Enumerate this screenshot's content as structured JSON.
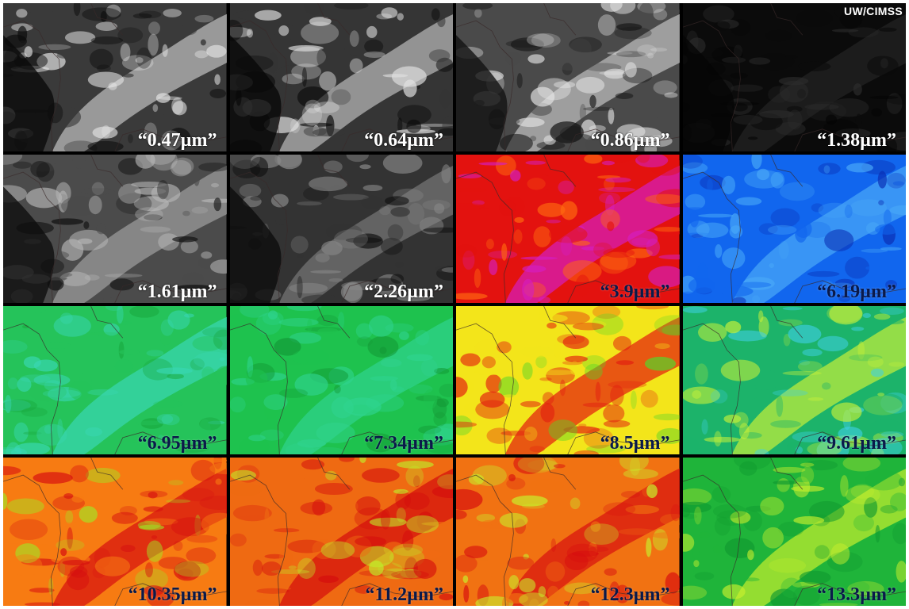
{
  "credit": "UW/CIMSS",
  "panels": [
    {
      "label": "“0.47µm”",
      "style": "gray",
      "base": "#3a3a3a",
      "hi": "#e8e8e8",
      "dark": "#0a0a0a"
    },
    {
      "label": "“0.64µm”",
      "style": "gray",
      "base": "#353535",
      "hi": "#e0e0e0",
      "dark": "#080808"
    },
    {
      "label": "“0.86µm”",
      "style": "gray",
      "base": "#4a4a4a",
      "hi": "#e4e4e4",
      "dark": "#111111"
    },
    {
      "label": "“1.38µm”",
      "style": "gray",
      "base": "#0b0b0b",
      "hi": "#2c2c2c",
      "dark": "#050505"
    },
    {
      "label": "“1.61µm”",
      "style": "gray",
      "base": "#4b4b4b",
      "hi": "#b8b8b8",
      "dark": "#0e0e0e"
    },
    {
      "label": "“2.26µm”",
      "style": "gray",
      "base": "#333333",
      "hi": "#8a8a8a",
      "dark": "#0c0c0c"
    },
    {
      "label": "“3.9µm”",
      "style": "color",
      "base": "#e3120f",
      "hi": "#d41ec0",
      "dark": "#ff6a10"
    },
    {
      "label": "“6.19µm”",
      "style": "color",
      "base": "#1166ee",
      "hi": "#4aaaf8",
      "dark": "#0a2fb5"
    },
    {
      "label": "“6.95µm”",
      "style": "color",
      "base": "#25c35a",
      "hi": "#39d7b4",
      "dark": "#19a83e"
    },
    {
      "label": "“7.34µm”",
      "style": "color",
      "base": "#1ec24e",
      "hi": "#2fd38e",
      "dark": "#139a36"
    },
    {
      "label": "“8.5µm”",
      "style": "color",
      "base": "#f3e51a",
      "hi": "#e21b10",
      "dark": "#56d62a"
    },
    {
      "label": "“9.61µm”",
      "style": "color",
      "base": "#1cb36a",
      "hi": "#c6f03a",
      "dark": "#3fd0e6"
    },
    {
      "label": "“10.35µm”",
      "style": "color",
      "base": "#f77b12",
      "hi": "#d61010",
      "dark": "#9ded26"
    },
    {
      "label": "“11.2µm”",
      "style": "color",
      "base": "#ef6a12",
      "hi": "#d40d0d",
      "dark": "#bff02a"
    },
    {
      "label": "“12.3µm”",
      "style": "color",
      "base": "#f17212",
      "hi": "#d70f0f",
      "dark": "#c8f22c"
    },
    {
      "label": "“13.3µm”",
      "style": "color",
      "base": "#1fb43a",
      "hi": "#c6ee2e",
      "dark": "#109a30"
    }
  ]
}
